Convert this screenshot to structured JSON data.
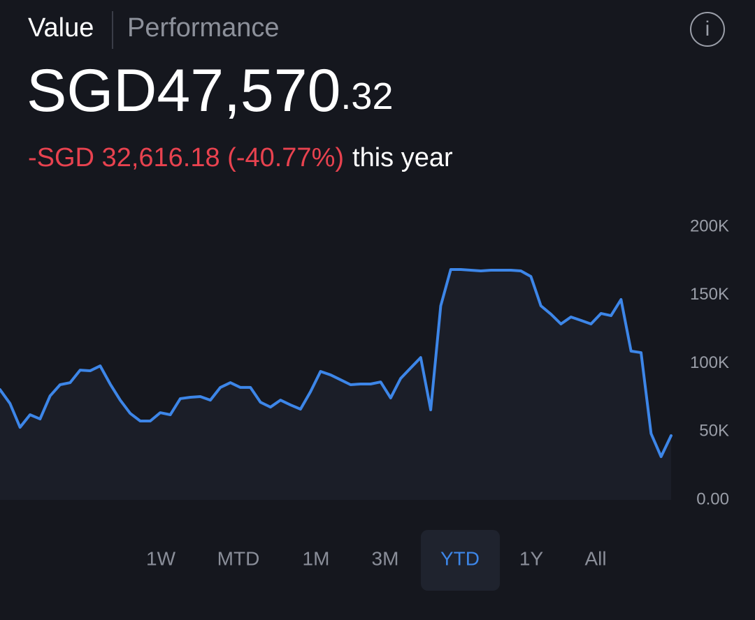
{
  "header": {
    "tabs": [
      "Value",
      "Performance"
    ],
    "info_icon": "i",
    "value_main": "SGD47,570",
    "value_decimal": ".32",
    "change": "-SGD 32,616.18 (-40.77%)",
    "change_suffix": "this year"
  },
  "ranges": [
    "1W",
    "MTD",
    "1M",
    "3M",
    "YTD",
    "1Y",
    "All"
  ],
  "selected_range": "YTD",
  "chart_data": {
    "type": "line",
    "color": "#3d86e8",
    "values": [
      80800,
      70600,
      53200,
      62400,
      59300,
      76200,
      84400,
      85900,
      95100,
      94600,
      98200,
      84900,
      73100,
      63400,
      57800,
      57800,
      63900,
      62400,
      74200,
      75200,
      75700,
      73100,
      82400,
      85900,
      82400,
      82400,
      71600,
      68000,
      73100,
      69600,
      66500,
      79300,
      94100,
      91600,
      88000,
      84400,
      84900,
      84900,
      86400,
      74700,
      89000,
      96700,
      104300,
      66000,
      142200,
      168800,
      168800,
      168300,
      167800,
      168300,
      168300,
      168300,
      167800,
      163700,
      142200,
      136100,
      128900,
      134000,
      131500,
      128900,
      136600,
      135000,
      146800,
      109000,
      107900,
      48600,
      31700,
      47100
    ],
    "ylim": [
      0,
      200000
    ],
    "yticks": [
      {
        "value": 0,
        "label": "0.00"
      },
      {
        "value": 50000,
        "label": "50K"
      },
      {
        "value": 100000,
        "label": "100K"
      },
      {
        "value": 150000,
        "label": "150K"
      },
      {
        "value": 200000,
        "label": "200K"
      }
    ]
  }
}
